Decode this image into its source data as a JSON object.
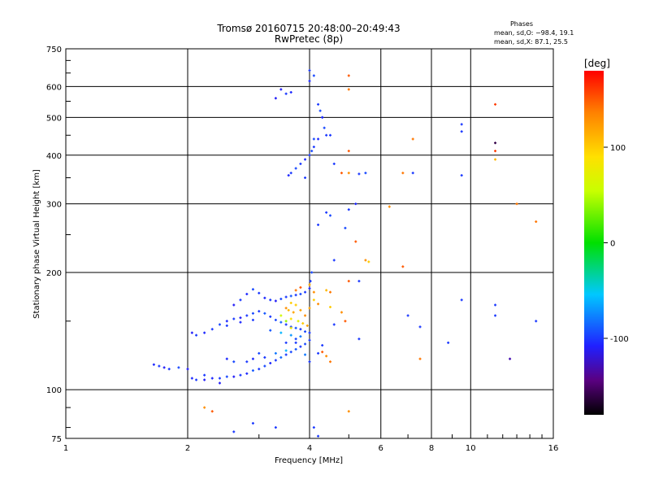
{
  "chart_data": {
    "type": "scatter",
    "title": "Tromsø 20160715 20:48:00–20:49:43",
    "subtitle": "RwPretec (8p)",
    "xlabel": "Frequency [MHz]",
    "ylabel": "Stationary phase Virtual Height [km]",
    "x_scale": "log",
    "y_scale": "log",
    "xlim": [
      1,
      16
    ],
    "ylim": [
      75,
      750
    ],
    "x_ticks": [
      1,
      2,
      4,
      6,
      8,
      10,
      16
    ],
    "x_tick_labels": [
      "1",
      "2",
      "4",
      "6",
      "8",
      "10",
      "16"
    ],
    "y_ticks": [
      75,
      100,
      200,
      300,
      400,
      500,
      600,
      750
    ],
    "y_tick_labels": [
      "75",
      "100",
      "200",
      "300",
      "400",
      "500",
      "600",
      "750"
    ],
    "grid": true,
    "phases": {
      "title": "Phases",
      "line_o": "mean, sd,O: −98.4, 19.1",
      "line_x": "mean, sd,X:  87.1, 25.5"
    },
    "colorbar": {
      "label": "[deg]",
      "range": [
        -180,
        180
      ],
      "ticks": [
        100,
        0,
        -100
      ],
      "tick_labels": [
        "100",
        "0",
        "-100"
      ]
    },
    "series": [
      {
        "group": "lower-trace",
        "points": [
          [
            1.65,
            116,
            -105
          ],
          [
            1.7,
            115,
            -100
          ],
          [
            1.75,
            114,
            -110
          ],
          [
            1.8,
            113,
            -100
          ],
          [
            1.9,
            114,
            -95
          ],
          [
            2.0,
            113,
            -110
          ],
          [
            2.05,
            107,
            -105
          ],
          [
            2.1,
            106,
            -100
          ],
          [
            2.2,
            106,
            -110
          ],
          [
            2.3,
            107,
            -105
          ],
          [
            2.4,
            107,
            -100
          ],
          [
            2.5,
            108,
            -95
          ],
          [
            2.6,
            108,
            -110
          ],
          [
            2.7,
            109,
            -100
          ],
          [
            2.8,
            110,
            -105
          ],
          [
            2.9,
            112,
            -90
          ],
          [
            3.0,
            113,
            -100
          ],
          [
            3.1,
            115,
            -95
          ],
          [
            3.2,
            117,
            -105
          ],
          [
            3.3,
            119,
            -100
          ],
          [
            3.4,
            121,
            -85
          ],
          [
            3.5,
            123,
            -100
          ],
          [
            3.6,
            125,
            -95
          ],
          [
            3.7,
            127,
            -90
          ],
          [
            3.8,
            129,
            -100
          ],
          [
            3.9,
            131,
            -95
          ],
          [
            4.0,
            134,
            -100
          ],
          [
            3.5,
            126,
            -60
          ],
          [
            3.3,
            124,
            -80
          ],
          [
            3.1,
            121,
            -100
          ],
          [
            3.0,
            124,
            -95
          ],
          [
            2.9,
            120,
            -105
          ],
          [
            2.8,
            118,
            -100
          ],
          [
            2.6,
            118,
            -95
          ],
          [
            2.5,
            120,
            -105
          ],
          [
            3.7,
            132,
            -100
          ],
          [
            3.9,
            123,
            -80
          ],
          [
            4.0,
            118,
            -100
          ],
          [
            2.2,
            109,
            -100
          ],
          [
            2.4,
            104,
            -110
          ]
        ]
      },
      {
        "group": "middle-trace",
        "points": [
          [
            2.05,
            140,
            -110
          ],
          [
            2.1,
            138,
            -100
          ],
          [
            2.2,
            140,
            -105
          ],
          [
            2.3,
            143,
            -100
          ],
          [
            2.4,
            147,
            -95
          ],
          [
            2.5,
            150,
            -105
          ],
          [
            2.6,
            152,
            -100
          ],
          [
            2.7,
            153,
            -110
          ],
          [
            2.8,
            155,
            -100
          ],
          [
            2.9,
            157,
            -95
          ],
          [
            3.0,
            159,
            -100
          ],
          [
            3.1,
            157,
            -90
          ],
          [
            3.2,
            154,
            -100
          ],
          [
            3.3,
            151,
            -95
          ],
          [
            3.4,
            149,
            -85
          ],
          [
            3.5,
            147,
            -100
          ],
          [
            3.6,
            145,
            -95
          ],
          [
            3.7,
            144,
            -90
          ],
          [
            3.8,
            143,
            -100
          ],
          [
            3.9,
            141,
            -95
          ],
          [
            4.0,
            140,
            -100
          ],
          [
            3.4,
            140,
            -60
          ],
          [
            3.6,
            138,
            -70
          ],
          [
            3.8,
            137,
            -80
          ],
          [
            3.2,
            142,
            -90
          ],
          [
            2.5,
            146,
            -100
          ],
          [
            2.7,
            149,
            -105
          ],
          [
            2.9,
            151,
            -100
          ],
          [
            3.5,
            132,
            -100
          ],
          [
            3.7,
            135,
            -95
          ]
        ]
      },
      {
        "group": "upper-trace",
        "points": [
          [
            2.6,
            165,
            -110
          ],
          [
            2.7,
            170,
            -100
          ],
          [
            2.8,
            176,
            -105
          ],
          [
            2.9,
            181,
            -95
          ],
          [
            3.0,
            177,
            -100
          ],
          [
            3.1,
            172,
            -105
          ],
          [
            3.2,
            170,
            -100
          ],
          [
            3.3,
            169,
            -110
          ],
          [
            3.4,
            171,
            -95
          ],
          [
            3.5,
            173,
            -100
          ],
          [
            3.6,
            174,
            -90
          ],
          [
            3.7,
            175,
            -100
          ],
          [
            3.8,
            176,
            -95
          ],
          [
            3.9,
            178,
            -100
          ],
          [
            4.0,
            182,
            -105
          ],
          [
            4.02,
            190,
            -100
          ],
          [
            4.05,
            200,
            -95
          ],
          [
            3.5,
            162,
            130
          ],
          [
            3.55,
            160,
            110
          ],
          [
            3.65,
            158,
            120
          ],
          [
            3.7,
            165,
            100
          ],
          [
            3.8,
            160,
            120
          ],
          [
            3.9,
            155,
            130
          ],
          [
            4.0,
            162,
            120
          ],
          [
            4.1,
            170,
            100
          ],
          [
            4.2,
            166,
            130
          ],
          [
            3.6,
            152,
            90
          ],
          [
            3.75,
            150,
            70
          ],
          [
            3.85,
            148,
            100
          ],
          [
            3.95,
            146,
            120
          ],
          [
            3.7,
            180,
            140
          ],
          [
            3.8,
            183,
            150
          ],
          [
            4.0,
            186,
            120
          ],
          [
            4.1,
            178,
            130
          ],
          [
            3.6,
            167,
            100
          ],
          [
            3.4,
            155,
            60
          ],
          [
            3.5,
            150,
            40
          ],
          [
            3.6,
            144,
            80
          ],
          [
            4.4,
            180,
            110
          ],
          [
            4.5,
            178,
            140
          ],
          [
            4.5,
            163,
            100
          ],
          [
            4.8,
            158,
            130
          ],
          [
            4.6,
            147,
            -100
          ],
          [
            4.3,
            125,
            150
          ],
          [
            4.4,
            122,
            130
          ],
          [
            4.5,
            118,
            140
          ],
          [
            4.3,
            130,
            -100
          ],
          [
            4.2,
            124,
            -100
          ]
        ]
      },
      {
        "group": "f-region",
        "points": [
          [
            3.4,
            590,
            -110
          ],
          [
            3.5,
            575,
            -100
          ],
          [
            3.6,
            580,
            -105
          ],
          [
            3.3,
            560,
            -110
          ],
          [
            4.0,
            660,
            -100
          ],
          [
            4.1,
            640,
            -95
          ],
          [
            4.0,
            620,
            -105
          ],
          [
            4.2,
            540,
            -100
          ],
          [
            4.25,
            520,
            -95
          ],
          [
            4.3,
            500,
            -100
          ],
          [
            4.35,
            470,
            -95
          ],
          [
            4.4,
            450,
            -100
          ],
          [
            4.2,
            440,
            -105
          ],
          [
            4.1,
            420,
            -100
          ],
          [
            4.05,
            410,
            -95
          ],
          [
            4.0,
            400,
            -100
          ],
          [
            3.9,
            390,
            -105
          ],
          [
            3.8,
            380,
            -100
          ],
          [
            3.7,
            370,
            -95
          ],
          [
            3.6,
            360,
            -100
          ],
          [
            3.55,
            355,
            -105
          ],
          [
            3.9,
            350,
            -100
          ],
          [
            4.1,
            440,
            -95
          ],
          [
            4.3,
            500,
            -105
          ],
          [
            4.5,
            450,
            -100
          ],
          [
            4.6,
            380,
            -100
          ],
          [
            4.8,
            360,
            150
          ],
          [
            5.0,
            360,
            130
          ],
          [
            5.3,
            358,
            -100
          ],
          [
            5.5,
            360,
            -95
          ],
          [
            5.2,
            300,
            -105
          ],
          [
            5.0,
            290,
            -100
          ],
          [
            4.9,
            260,
            -95
          ],
          [
            4.4,
            285,
            -100
          ],
          [
            4.5,
            280,
            -95
          ],
          [
            4.2,
            265,
            -100
          ],
          [
            4.6,
            215,
            -100
          ],
          [
            5.2,
            240,
            150
          ],
          [
            5.5,
            215,
            130
          ],
          [
            5.6,
            213,
            100
          ],
          [
            5.0,
            190,
            150
          ],
          [
            5.3,
            190,
            -100
          ],
          [
            6.8,
            207,
            150
          ],
          [
            4.9,
            150,
            150
          ],
          [
            5.3,
            135,
            -100
          ],
          [
            6.8,
            360,
            140
          ],
          [
            7.2,
            360,
            -100
          ],
          [
            7.2,
            440,
            140
          ],
          [
            5.0,
            640,
            150
          ],
          [
            5.0,
            590,
            140
          ],
          [
            5.0,
            410,
            150
          ],
          [
            6.3,
            295,
            130
          ],
          [
            7.0,
            155,
            -100
          ],
          [
            7.5,
            145,
            -100
          ],
          [
            8.8,
            132,
            -100
          ],
          [
            7.5,
            120,
            140
          ],
          [
            11.5,
            540,
            160
          ],
          [
            11.5,
            430,
            -160
          ],
          [
            11.5,
            410,
            160
          ],
          [
            11.5,
            390,
            110
          ],
          [
            9.5,
            480,
            -100
          ],
          [
            9.5,
            460,
            -100
          ],
          [
            9.5,
            355,
            -100
          ],
          [
            9.5,
            170,
            -100
          ],
          [
            11.5,
            165,
            -100
          ],
          [
            11.5,
            155,
            -100
          ],
          [
            13.0,
            300,
            140
          ],
          [
            14.5,
            270,
            140
          ],
          [
            14.5,
            150,
            -100
          ],
          [
            12.5,
            120,
            -130
          ],
          [
            2.9,
            82,
            -100
          ],
          [
            3.3,
            80,
            -100
          ],
          [
            4.1,
            80,
            -100
          ],
          [
            2.3,
            88,
            150
          ],
          [
            2.2,
            90,
            130
          ],
          [
            2.6,
            78,
            -100
          ],
          [
            4.2,
            76,
            -100
          ],
          [
            5.0,
            88,
            130
          ]
        ]
      }
    ]
  }
}
